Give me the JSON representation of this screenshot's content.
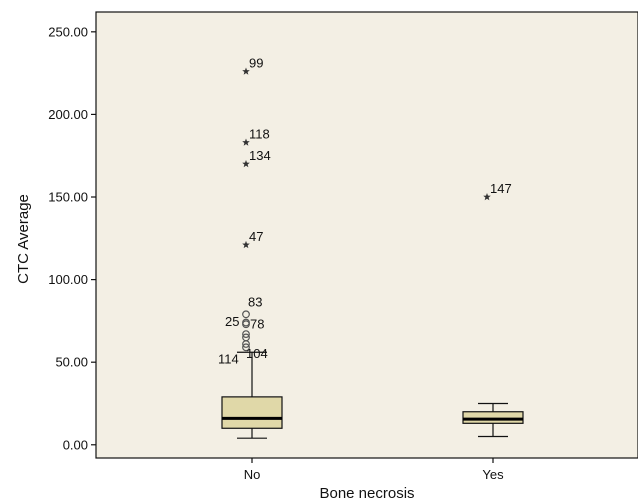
{
  "chart_data": {
    "type": "boxplot",
    "xlabel": "Bone necrosis",
    "ylabel": "CTC Average",
    "ylim": [
      -8,
      262
    ],
    "yticks": [
      {
        "value": 0,
        "label": "0.00"
      },
      {
        "value": 50,
        "label": "50.00"
      },
      {
        "value": 100,
        "label": "100.00"
      },
      {
        "value": 150,
        "label": "150.00"
      },
      {
        "value": 200,
        "label": "200.00"
      },
      {
        "value": 250,
        "label": "250.00"
      }
    ],
    "categories": [
      "No",
      "Yes"
    ],
    "colors": {
      "plot_bg": "#f3efe4",
      "box_fill": "#e0d8a8",
      "stroke": "#111111"
    },
    "boxes": [
      {
        "category": "No",
        "whisker_low": 4,
        "q1": 10,
        "median": 16,
        "q3": 29,
        "whisker_high": 56,
        "outliers": [
          {
            "value": 59,
            "label": "114",
            "marker": "circle"
          },
          {
            "value": 61,
            "label": "104",
            "marker": "circle"
          },
          {
            "value": 65,
            "label": "",
            "marker": "circle"
          },
          {
            "value": 67,
            "label": "",
            "marker": "circle"
          },
          {
            "value": 73,
            "label": "25",
            "marker": "circle"
          },
          {
            "value": 74,
            "label": "78",
            "marker": "circle"
          },
          {
            "value": 79,
            "label": "83",
            "marker": "circle"
          }
        ],
        "extremes": [
          {
            "value": 121,
            "label": "47",
            "marker": "star"
          },
          {
            "value": 170,
            "label": "134",
            "marker": "star"
          },
          {
            "value": 183,
            "label": "118",
            "marker": "star"
          },
          {
            "value": 226,
            "label": "99",
            "marker": "star"
          }
        ]
      },
      {
        "category": "Yes",
        "whisker_low": 5,
        "q1": 13,
        "median": 15.5,
        "q3": 20,
        "whisker_high": 25,
        "outliers": [],
        "extremes": [
          {
            "value": 150,
            "label": "147",
            "marker": "star"
          }
        ]
      }
    ]
  }
}
